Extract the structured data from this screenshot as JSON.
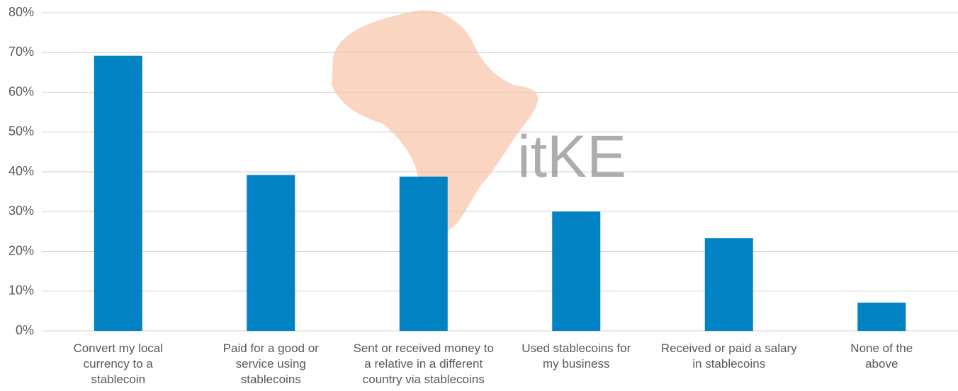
{
  "chart_data": {
    "type": "bar",
    "categories": [
      "Convert my local currency to a stablecoin",
      "Paid for a good or service using stablecoins",
      "Sent or received money to a relative in a different country via stablecoins",
      "Used stablecoins for my business",
      "Received or paid a salary in stablecoins",
      "None of the above"
    ],
    "values": [
      69.2,
      39.2,
      38.8,
      30,
      23.3,
      7.1
    ],
    "color": "#0082c3",
    "ylim": [
      0,
      80
    ],
    "yticks": [
      {
        "value": 0,
        "label": "0%"
      },
      {
        "value": 10,
        "label": "10%"
      },
      {
        "value": 20,
        "label": "20%"
      },
      {
        "value": 30,
        "label": "30%"
      },
      {
        "value": 40,
        "label": "40%"
      },
      {
        "value": 50,
        "label": "50%"
      },
      {
        "value": 60,
        "label": "60%"
      },
      {
        "value": 70,
        "label": "70%"
      },
      {
        "value": 80,
        "label": "80%"
      }
    ],
    "grid": true,
    "watermark": "itKE"
  }
}
